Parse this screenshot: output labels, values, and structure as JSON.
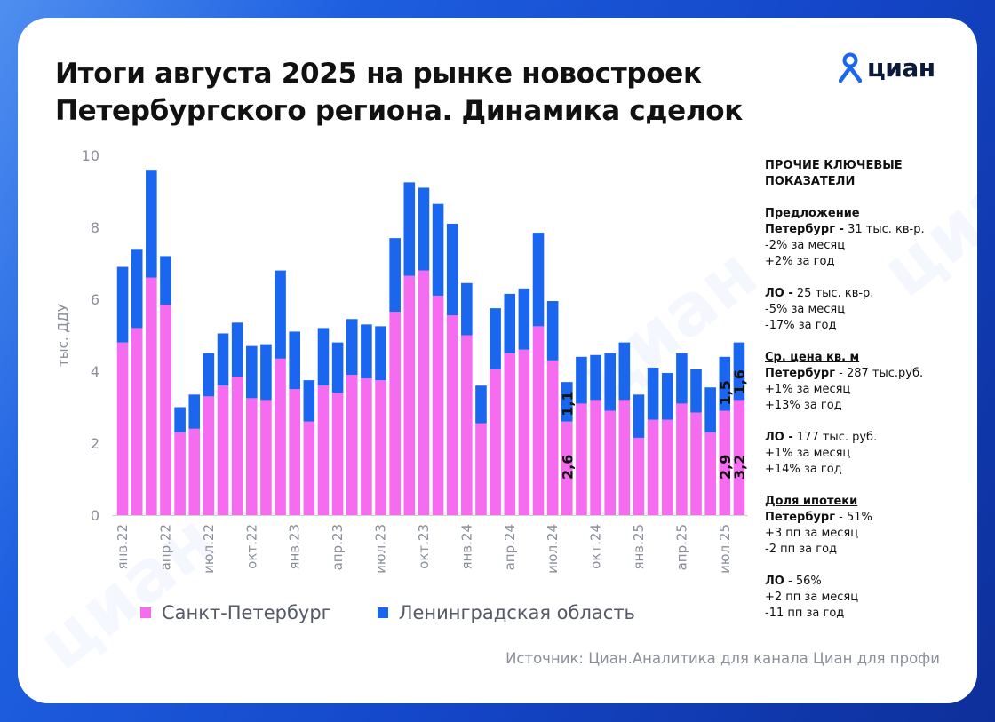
{
  "title": {
    "line1": "Итоги августа 2025 на рынке новостроек",
    "line2": "Петербургского региона. Динамика сделок"
  },
  "logo": {
    "text": "циан",
    "icon": "location-pin-icon"
  },
  "watermark_text": "циан",
  "colors": {
    "spb": "#f66cf0",
    "lo": "#1a66ee",
    "text": "#111111",
    "axis": "#8a8f99"
  },
  "chart_data": {
    "type": "bar",
    "stacked": true,
    "ylabel": "тыс. ДДУ",
    "ylim": [
      0,
      10
    ],
    "yticks": [
      0,
      2,
      4,
      6,
      8,
      10
    ],
    "grid": false,
    "legend_position": "bottom",
    "x": [
      "янв.22",
      "фев.22",
      "мар.22",
      "апр.22",
      "май.22",
      "июн.22",
      "июл.22",
      "авг.22",
      "сен.22",
      "окт.22",
      "ноя.22",
      "дек.22",
      "янв.23",
      "фев.23",
      "мар.23",
      "апр.23",
      "май.23",
      "июн.23",
      "июл.23",
      "авг.23",
      "сен.23",
      "окт.23",
      "ноя.23",
      "дек.23",
      "янв.24",
      "фев.24",
      "мар.24",
      "апр.24",
      "май.24",
      "июн.24",
      "июл.24",
      "авг.24",
      "сен.24",
      "окт.24",
      "ноя.24",
      "дек.24",
      "янв.25",
      "фев.25",
      "мар.25",
      "апр.25",
      "май.25",
      "июн.25",
      "июл.25",
      "авг.25"
    ],
    "tick_labels": [
      {
        "index": 0,
        "label": "янв.22"
      },
      {
        "index": 3,
        "label": "апр.22"
      },
      {
        "index": 6,
        "label": "июл.22"
      },
      {
        "index": 9,
        "label": "окт.22"
      },
      {
        "index": 12,
        "label": "янв.23"
      },
      {
        "index": 15,
        "label": "апр.23"
      },
      {
        "index": 18,
        "label": "июл.23"
      },
      {
        "index": 21,
        "label": "окт.23"
      },
      {
        "index": 24,
        "label": "янв.24"
      },
      {
        "index": 27,
        "label": "апр.24"
      },
      {
        "index": 30,
        "label": "июл.24"
      },
      {
        "index": 33,
        "label": "окт.24"
      },
      {
        "index": 36,
        "label": "янв.25"
      },
      {
        "index": 39,
        "label": "апр.25"
      },
      {
        "index": 42,
        "label": "июл.25"
      }
    ],
    "series": [
      {
        "name": "Санкт-Петербург",
        "values": [
          4.8,
          5.2,
          6.6,
          5.85,
          2.3,
          2.4,
          3.3,
          3.6,
          3.85,
          3.25,
          3.2,
          4.35,
          3.5,
          2.6,
          3.6,
          3.4,
          3.9,
          3.8,
          3.75,
          5.65,
          6.65,
          6.8,
          6.1,
          5.55,
          5.0,
          2.55,
          4.05,
          4.5,
          4.6,
          5.25,
          4.3,
          2.6,
          3.1,
          3.2,
          2.9,
          3.2,
          2.15,
          2.65,
          2.65,
          3.1,
          2.85,
          2.3,
          2.9,
          3.2
        ]
      },
      {
        "name": "Ленинградская область",
        "values": [
          2.1,
          2.2,
          3.0,
          1.35,
          0.7,
          0.95,
          1.2,
          1.45,
          1.5,
          1.45,
          1.55,
          2.45,
          1.6,
          1.15,
          1.6,
          1.4,
          1.55,
          1.5,
          1.5,
          2.05,
          2.6,
          2.3,
          2.55,
          2.55,
          1.45,
          1.05,
          1.7,
          1.65,
          1.7,
          2.6,
          1.65,
          1.1,
          1.3,
          1.25,
          1.6,
          1.6,
          1.2,
          1.45,
          1.3,
          1.4,
          1.2,
          1.25,
          1.5,
          1.6
        ]
      }
    ],
    "annotations": [
      {
        "index": 31,
        "series": "Санкт-Петербург",
        "label": "2,6"
      },
      {
        "index": 31,
        "series": "Ленинградская область",
        "label": "1,1"
      },
      {
        "index": 42,
        "series": "Санкт-Петербург",
        "label": "2,9"
      },
      {
        "index": 42,
        "series": "Ленинградская область",
        "label": "1,5"
      },
      {
        "index": 43,
        "series": "Санкт-Петербург",
        "label": "3,2"
      },
      {
        "index": 43,
        "series": "Ленинградская область",
        "label": "1,6"
      }
    ]
  },
  "side": {
    "title": "ПРОЧИЕ КЛЮЧЕВЫЕ ПОКАЗАТЕЛИ",
    "offer": {
      "head": "Предложение",
      "spb_label": "Петербург -",
      "spb_value": " 31 тыс. кв-р.",
      "spb_line2": "-2% за месяц",
      "spb_line3": "+2% за год",
      "lo_label": "ЛО -",
      "lo_value": " 25 тыс. кв-р.",
      "lo_line2": "-5% за месяц",
      "lo_line3": "-17% за год"
    },
    "price": {
      "head": "Ср. цена кв. м",
      "spb_label": "Петербург",
      "spb_value": " - 287 тыс.руб.",
      "spb_line2": "+1% за месяц",
      "spb_line3": "+13% за год",
      "lo_label": "ЛО -",
      "lo_value": " 177 тыс. руб.",
      "lo_line2": "+1% за месяц",
      "lo_line3": "+14% за год"
    },
    "mortgage": {
      "head": "Доля ипотеки",
      "spb_label": "Петербург",
      "spb_value": " - 51%",
      "spb_line2": "+3 пп за месяц",
      "spb_line3": "-2 пп за год",
      "lo_label": "ЛО",
      "lo_value": " - 56%",
      "lo_line2": "+2 пп за месяц",
      "lo_line3": "-11 пп за год"
    }
  },
  "source": "Источник: Циан.Аналитика для канала Циан для профи"
}
